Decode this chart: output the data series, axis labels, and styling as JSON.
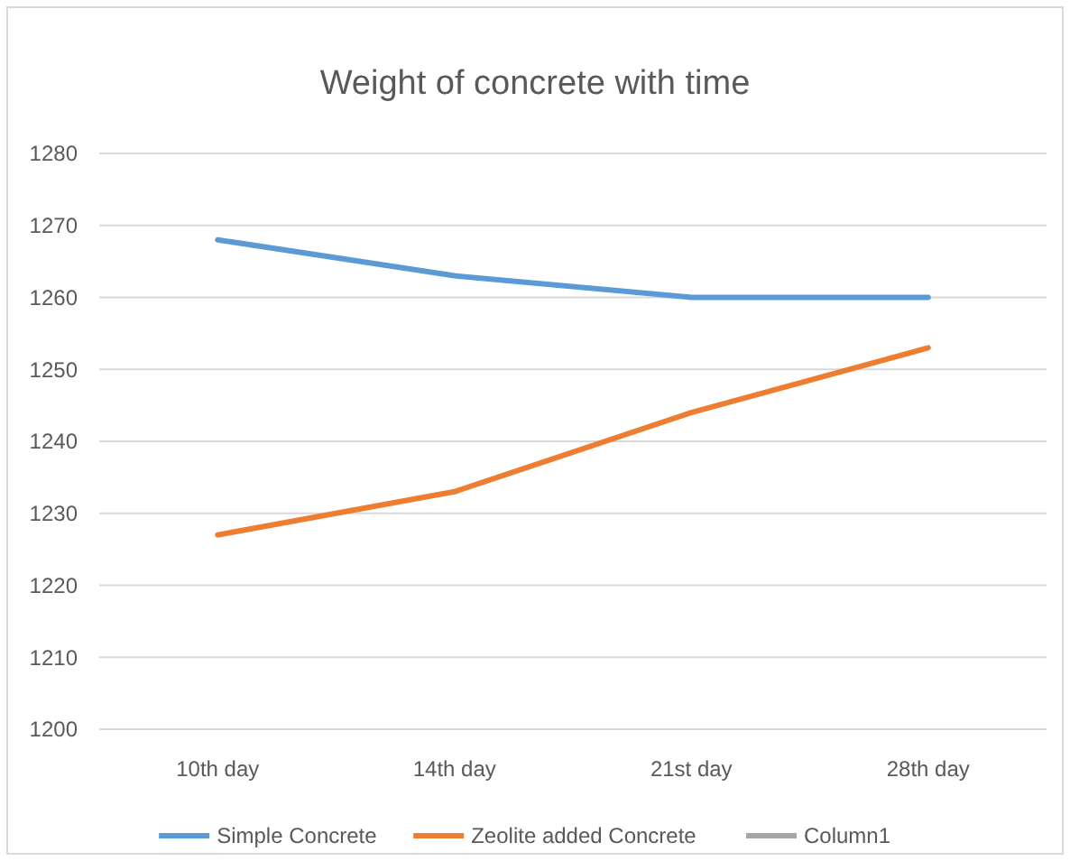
{
  "chart_data": {
    "type": "line",
    "title": "Weight of concrete with time",
    "categories": [
      "10th day",
      "14th day",
      "21st day",
      "28th day"
    ],
    "series": [
      {
        "name": "Simple Concrete",
        "color": "#5b9bd5",
        "values": [
          1268,
          1263,
          1260,
          1260
        ]
      },
      {
        "name": "Zeolite added Concrete",
        "color": "#ed7d31",
        "values": [
          1227,
          1233,
          1244,
          1253
        ]
      },
      {
        "name": "Column1",
        "color": "#a5a5a5",
        "values": [
          null,
          null,
          null,
          null
        ]
      }
    ],
    "ylim": [
      1200,
      1280
    ],
    "yticks": [
      1200,
      1210,
      1220,
      1230,
      1240,
      1250,
      1260,
      1270,
      1280
    ],
    "grid": "y",
    "legend": "bottom",
    "marker": "none",
    "line_style": "solid"
  }
}
